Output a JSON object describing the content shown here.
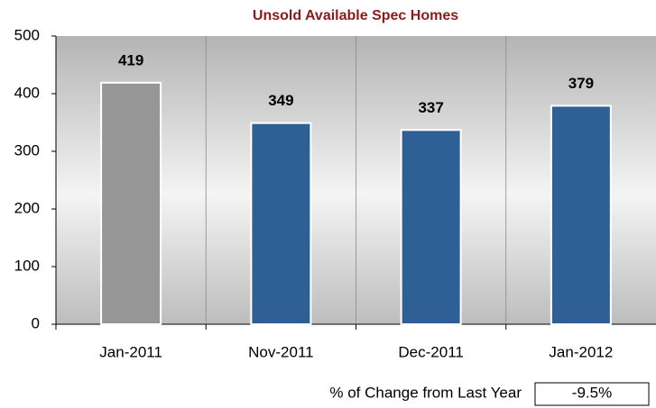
{
  "chart_data": {
    "type": "bar",
    "title": "Unsold Available Spec Homes",
    "categories": [
      "Jan-2011",
      "Nov-2011",
      "Dec-2011",
      "Jan-2012"
    ],
    "values": [
      419,
      349,
      337,
      379
    ],
    "colors": [
      "#969696",
      "#2e6096",
      "#2e6096",
      "#2e6096"
    ],
    "ylim": [
      0,
      500
    ],
    "yticks": [
      0,
      100,
      200,
      300,
      400,
      500
    ],
    "annotation": {
      "label": "% of Change from Last Year",
      "value": "-9.5%"
    }
  }
}
